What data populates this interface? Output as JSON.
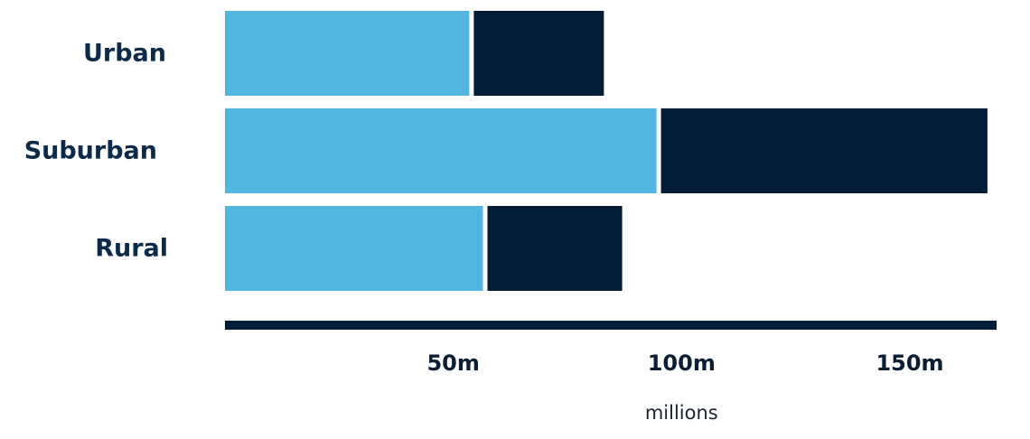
{
  "chart_data": {
    "type": "bar",
    "orientation": "horizontal",
    "stacked": true,
    "categories": [
      "Urban",
      "Suburban",
      "Rural"
    ],
    "series": [
      {
        "values": [
          54,
          95,
          57
        ],
        "color": "#53b6e1"
      },
      {
        "values": [
          29,
          72,
          30
        ],
        "color": "#021d35"
      }
    ],
    "xlim": [
      0,
      169
    ],
    "xticks": [
      50,
      100,
      150
    ],
    "xtick_labels": [
      "50m",
      "100m",
      "150m"
    ],
    "xlabel": "millions",
    "ylabel": "",
    "title": "",
    "grid": false,
    "legend": "none",
    "axis_color": "#021d35"
  }
}
